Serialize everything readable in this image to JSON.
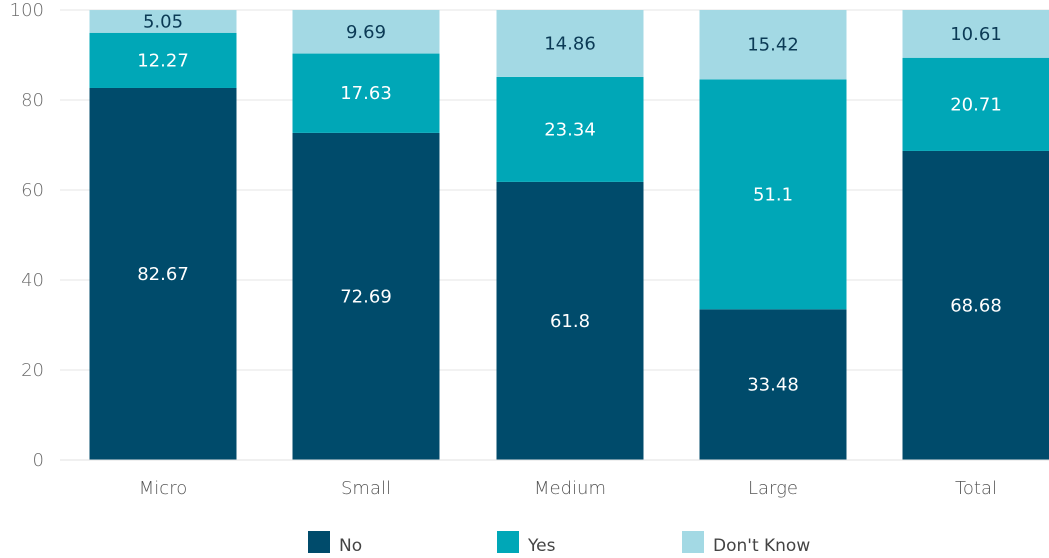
{
  "chart_data": {
    "type": "bar",
    "stacked": true,
    "categories": [
      "Micro",
      "Small",
      "Medium",
      "Large",
      "Total"
    ],
    "series": [
      {
        "name": "No",
        "color": "#004b6b",
        "label_color": "#ffffff",
        "values": [
          82.67,
          72.69,
          61.8,
          33.48,
          68.68
        ]
      },
      {
        "name": "Yes",
        "color": "#00a7b7",
        "label_color": "#ffffff",
        "values": [
          12.27,
          17.63,
          23.34,
          51.1,
          20.71
        ]
      },
      {
        "name": "Don't Know",
        "color": "#a3d9e4",
        "label_color": "#0b3a55",
        "values": [
          5.05,
          9.69,
          14.86,
          15.42,
          10.61
        ]
      }
    ],
    "y_ticks": [
      0,
      20,
      40,
      60,
      80,
      100
    ],
    "ylim": [
      0,
      100
    ],
    "grid": true,
    "legend_position": "bottom",
    "xlabel": "",
    "ylabel": "",
    "title": ""
  }
}
